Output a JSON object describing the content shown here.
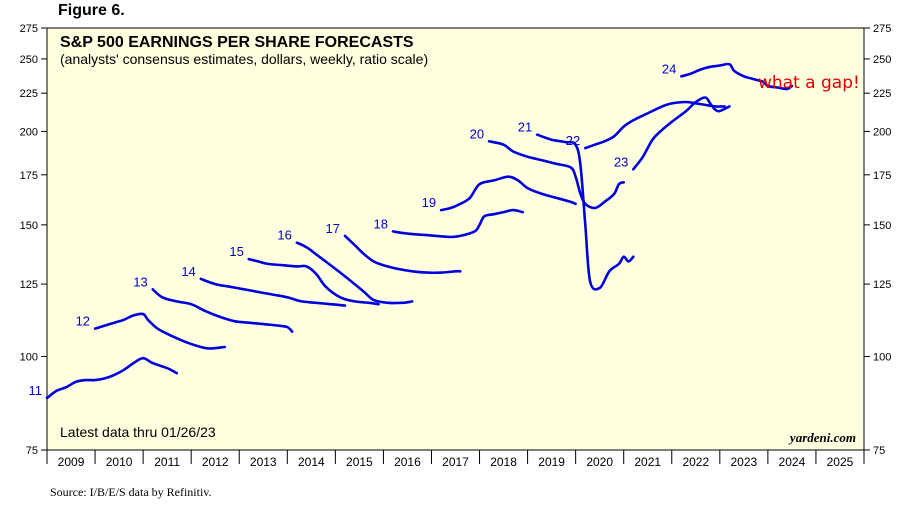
{
  "figure_label": "Figure 6.",
  "source": "Source: I/B/E/S data by Refinitiv.",
  "colors": {
    "line": "#0000dd",
    "label": "#0000cc",
    "plot_bg": "#ffffe0",
    "annotation": "#e00000"
  },
  "chart_data": {
    "type": "line",
    "title": "S&P 500 EARNINGS PER SHARE FORECASTS",
    "subtitle": "(analysts' consensus estimates, dollars, weekly, ratio scale)",
    "note": "Latest data thru 01/26/23",
    "brand": "yardeni.com",
    "annotation": "what a gap!",
    "y_scale": "log",
    "ylim": [
      75,
      275
    ],
    "y_ticks": [
      75,
      100,
      125,
      150,
      175,
      200,
      225,
      250,
      275
    ],
    "xlim": [
      2009,
      2026
    ],
    "x_labels": [
      "2009",
      "2010",
      "2011",
      "2012",
      "2013",
      "2014",
      "2015",
      "2016",
      "2017",
      "2018",
      "2019",
      "2020",
      "2021",
      "2022",
      "2023",
      "2024",
      "2025"
    ],
    "grid": false,
    "series": [
      {
        "name": "11",
        "points": [
          [
            2009.0,
            88
          ],
          [
            2009.2,
            90
          ],
          [
            2009.4,
            91
          ],
          [
            2009.6,
            92.5
          ],
          [
            2009.8,
            93
          ],
          [
            2010.0,
            93
          ],
          [
            2010.2,
            93.5
          ],
          [
            2010.4,
            94.5
          ],
          [
            2010.6,
            96
          ],
          [
            2010.8,
            98
          ],
          [
            2011.0,
            99.5
          ],
          [
            2011.2,
            98
          ],
          [
            2011.5,
            96.5
          ],
          [
            2011.7,
            95
          ]
        ]
      },
      {
        "name": "12",
        "points": [
          [
            2010.0,
            109
          ],
          [
            2010.2,
            110
          ],
          [
            2010.4,
            111
          ],
          [
            2010.6,
            112
          ],
          [
            2010.8,
            113.5
          ],
          [
            2011.0,
            114
          ],
          [
            2011.1,
            112
          ],
          [
            2011.3,
            109
          ],
          [
            2011.6,
            106.5
          ],
          [
            2011.9,
            104.5
          ],
          [
            2012.2,
            103
          ],
          [
            2012.4,
            102.5
          ],
          [
            2012.7,
            103
          ]
        ]
      },
      {
        "name": "13",
        "points": [
          [
            2011.2,
            123
          ],
          [
            2011.4,
            120
          ],
          [
            2011.7,
            118.5
          ],
          [
            2012.0,
            117.5
          ],
          [
            2012.3,
            115
          ],
          [
            2012.6,
            113
          ],
          [
            2012.9,
            111.5
          ],
          [
            2013.2,
            111
          ],
          [
            2013.5,
            110.5
          ],
          [
            2013.8,
            110
          ],
          [
            2014.0,
            109.5
          ],
          [
            2014.1,
            108
          ]
        ]
      },
      {
        "name": "14",
        "points": [
          [
            2012.2,
            127
          ],
          [
            2012.5,
            125
          ],
          [
            2012.8,
            124
          ],
          [
            2013.1,
            123
          ],
          [
            2013.4,
            122
          ],
          [
            2013.7,
            121
          ],
          [
            2014.0,
            120
          ],
          [
            2014.3,
            118.5
          ],
          [
            2014.6,
            118
          ],
          [
            2014.9,
            117.5
          ],
          [
            2015.2,
            117
          ]
        ]
      },
      {
        "name": "15",
        "points": [
          [
            2013.2,
            135
          ],
          [
            2013.4,
            134
          ],
          [
            2013.6,
            133
          ],
          [
            2013.9,
            132.5
          ],
          [
            2014.2,
            132
          ],
          [
            2014.4,
            132
          ],
          [
            2014.6,
            129
          ],
          [
            2014.8,
            124
          ],
          [
            2015.1,
            120
          ],
          [
            2015.4,
            118.5
          ],
          [
            2015.7,
            118
          ],
          [
            2015.9,
            117.5
          ]
        ]
      },
      {
        "name": "16",
        "points": [
          [
            2014.2,
            142
          ],
          [
            2014.4,
            140
          ],
          [
            2014.6,
            137
          ],
          [
            2014.8,
            134
          ],
          [
            2015.0,
            131
          ],
          [
            2015.2,
            128
          ],
          [
            2015.4,
            125
          ],
          [
            2015.6,
            122
          ],
          [
            2015.8,
            119
          ],
          [
            2016.1,
            118
          ],
          [
            2016.4,
            118
          ],
          [
            2016.6,
            118.5
          ]
        ]
      },
      {
        "name": "17",
        "points": [
          [
            2015.2,
            145
          ],
          [
            2015.4,
            141
          ],
          [
            2015.6,
            137
          ],
          [
            2015.8,
            134
          ],
          [
            2016.0,
            132.5
          ],
          [
            2016.3,
            131
          ],
          [
            2016.6,
            130
          ],
          [
            2016.9,
            129.5
          ],
          [
            2017.2,
            129.5
          ],
          [
            2017.5,
            130
          ],
          [
            2017.6,
            130
          ]
        ]
      },
      {
        "name": "18",
        "points": [
          [
            2016.2,
            147
          ],
          [
            2016.5,
            146
          ],
          [
            2016.8,
            145.5
          ],
          [
            2017.1,
            145
          ],
          [
            2017.4,
            144.5
          ],
          [
            2017.6,
            145
          ],
          [
            2017.9,
            147
          ],
          [
            2018.0,
            150
          ],
          [
            2018.1,
            154
          ],
          [
            2018.3,
            155
          ],
          [
            2018.5,
            156
          ],
          [
            2018.7,
            157
          ],
          [
            2018.9,
            156
          ]
        ]
      },
      {
        "name": "19",
        "points": [
          [
            2017.2,
            157
          ],
          [
            2017.4,
            158
          ],
          [
            2017.6,
            160
          ],
          [
            2017.8,
            163
          ],
          [
            2018.0,
            170
          ],
          [
            2018.3,
            172
          ],
          [
            2018.6,
            174
          ],
          [
            2018.8,
            172
          ],
          [
            2019.0,
            168
          ],
          [
            2019.3,
            165
          ],
          [
            2019.6,
            163
          ],
          [
            2019.9,
            161
          ],
          [
            2020.0,
            160
          ]
        ]
      },
      {
        "name": "20",
        "points": [
          [
            2018.2,
            194
          ],
          [
            2018.5,
            192
          ],
          [
            2018.7,
            188
          ],
          [
            2019.0,
            185
          ],
          [
            2019.3,
            183
          ],
          [
            2019.6,
            181
          ],
          [
            2019.9,
            179
          ],
          [
            2020.0,
            174
          ],
          [
            2020.1,
            165
          ],
          [
            2020.2,
            160
          ],
          [
            2020.4,
            158
          ],
          [
            2020.6,
            161
          ],
          [
            2020.8,
            165
          ],
          [
            2020.9,
            170
          ],
          [
            2021.0,
            171
          ]
        ]
      },
      {
        "name": "21",
        "points": [
          [
            2019.2,
            198
          ],
          [
            2019.5,
            195
          ],
          [
            2019.8,
            193.5
          ],
          [
            2020.0,
            192
          ],
          [
            2020.1,
            180
          ],
          [
            2020.2,
            150
          ],
          [
            2020.3,
            126
          ],
          [
            2020.5,
            123.5
          ],
          [
            2020.7,
            130
          ],
          [
            2020.9,
            133
          ],
          [
            2021.0,
            136
          ],
          [
            2021.1,
            134
          ],
          [
            2021.2,
            136
          ]
        ]
      },
      {
        "name": "22",
        "points": [
          [
            2020.2,
            190
          ],
          [
            2020.4,
            192
          ],
          [
            2020.6,
            194
          ],
          [
            2020.8,
            197
          ],
          [
            2021.0,
            203
          ],
          [
            2021.2,
            207
          ],
          [
            2021.4,
            210
          ],
          [
            2021.6,
            213
          ],
          [
            2021.8,
            216
          ],
          [
            2022.0,
            218
          ],
          [
            2022.3,
            219
          ],
          [
            2022.5,
            218
          ],
          [
            2022.7,
            217
          ],
          [
            2022.9,
            216
          ],
          [
            2023.1,
            216
          ]
        ]
      },
      {
        "name": "23",
        "points": [
          [
            2021.2,
            178
          ],
          [
            2021.4,
            185
          ],
          [
            2021.6,
            195
          ],
          [
            2021.8,
            201
          ],
          [
            2022.0,
            206
          ],
          [
            2022.3,
            213
          ],
          [
            2022.5,
            219
          ],
          [
            2022.7,
            222
          ],
          [
            2022.8,
            218
          ],
          [
            2022.9,
            214
          ],
          [
            2023.0,
            213
          ],
          [
            2023.2,
            216
          ]
        ]
      },
      {
        "name": "24",
        "points": [
          [
            2022.2,
            237
          ],
          [
            2022.4,
            239
          ],
          [
            2022.6,
            242
          ],
          [
            2022.8,
            244
          ],
          [
            2023.0,
            245
          ],
          [
            2023.2,
            246
          ],
          [
            2023.3,
            241
          ],
          [
            2023.5,
            237
          ],
          [
            2023.7,
            235
          ],
          [
            2023.9,
            233
          ],
          [
            2024.0,
            230
          ],
          [
            2024.2,
            229
          ],
          [
            2024.4,
            228
          ],
          [
            2024.5,
            230
          ]
        ]
      }
    ]
  }
}
